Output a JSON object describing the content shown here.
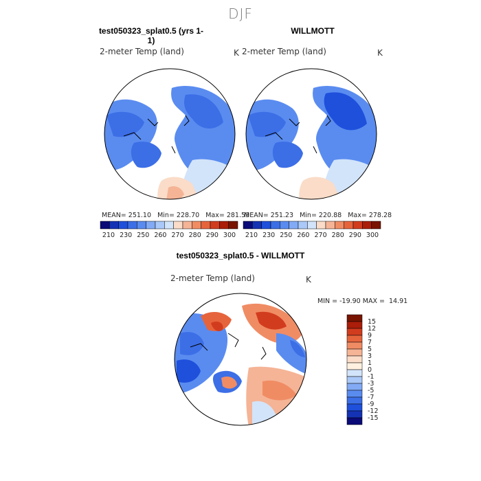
{
  "title": "DJF",
  "panels": [
    {
      "title": "test050323_splat0.5 (yrs 1-1)",
      "variable": "2-meter Temp (land)",
      "unit": "K",
      "stats": "MEAN= 251.10   Min= 228.70   Max= 281.59"
    },
    {
      "title": "WILLMOTT",
      "variable": "2-meter Temp (land)",
      "unit": "K",
      "stats": "MEAN= 251.23   Min= 220.88   Max= 278.28"
    },
    {
      "title": "test050323_splat0.5 - WILLMOTT",
      "variable": "2-meter Temp (land)",
      "unit": "K",
      "stats": "MIN = -19.90 MAX =  14.91"
    }
  ],
  "abs_colorbar": {
    "colors": [
      "#0a0a78",
      "#1432b4",
      "#1e50dc",
      "#3c6ee6",
      "#5a8cf0",
      "#82aaf5",
      "#aac8f8",
      "#d2e4fa",
      "#fadcc8",
      "#f5b496",
      "#f08c64",
      "#e6643c",
      "#d23c1e",
      "#aa1e0a",
      "#781400"
    ],
    "labels": [
      "210",
      "230",
      "250",
      "260",
      "270",
      "280",
      "290",
      "300"
    ]
  },
  "diff_colorbar": {
    "colors": [
      "#781400",
      "#aa1e0a",
      "#d23c1e",
      "#e6643c",
      "#f08c64",
      "#f5b496",
      "#fadcc8",
      "#fff0e0",
      "#d2e4fa",
      "#aac8f8",
      "#82aaf5",
      "#5a8cf0",
      "#3c6ee6",
      "#1e50dc",
      "#1432b4",
      "#0a0a78"
    ],
    "labels": [
      "15",
      "12",
      "9",
      "7",
      "5",
      "3",
      "1",
      "0",
      "-1",
      "-3",
      "-5",
      "-7",
      "-9",
      "-12",
      "-15"
    ]
  },
  "map_colors": {
    "cold_blue": "#3c6ee6",
    "mid_blue": "#5a8cf0",
    "deep_blue": "#1e50dc",
    "pale_blue": "#d2e4fa",
    "warm_peach": "#f5b496",
    "warm_orange": "#f08c64",
    "strong_red": "#e6643c"
  }
}
